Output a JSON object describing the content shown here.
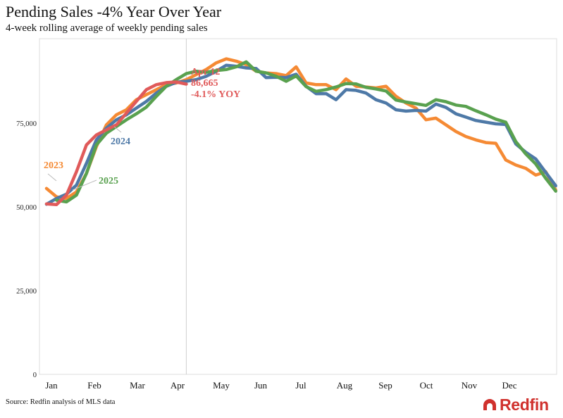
{
  "header": {
    "title": "Pending Sales -4% Year Over Year",
    "subtitle": "4-week rolling average of weekly pending sales"
  },
  "footer": {
    "source": "Source: Redfin analysis of MLS data",
    "logo_text": "Redfin"
  },
  "chart_data": {
    "type": "line",
    "title": "Pending Sales -4% Year Over Year",
    "subtitle": "4-week rolling average of weekly pending sales",
    "xlabel": "",
    "ylabel": "",
    "ylim": [
      0,
      100000
    ],
    "y_ticks": [
      0,
      25000,
      50000,
      75000
    ],
    "y_tick_labels": [
      "0",
      "25,000",
      "50,000",
      "75,000"
    ],
    "x_ticks": [
      "Jan",
      "Feb",
      "Mar",
      "Apr",
      "May",
      "Jun",
      "Jul",
      "Aug",
      "Sep",
      "Oct",
      "Nov",
      "Dec"
    ],
    "grid": false,
    "legend": "inline labels",
    "reference_line": "Apr 12",
    "annotation": {
      "date_label": "Apr 12",
      "value_label": "86,665",
      "yoy_label": "-4.1% YOY",
      "color": "#e05a5a"
    },
    "series": [
      {
        "name": "2023",
        "color": "#f58a34",
        "label_color": "#f58a34",
        "values": [
          55500,
          53000,
          52500,
          54500,
          60000,
          68000,
          74500,
          77500,
          79000,
          82000,
          83500,
          85000,
          86500,
          87000,
          88000,
          89500,
          91000,
          93000,
          94200,
          93500,
          92500,
          90500,
          90000,
          89800,
          89200,
          91800,
          87000,
          86500,
          86500,
          85000,
          88200,
          86000,
          85800,
          85500,
          86000,
          83000,
          81000,
          79500,
          76000,
          76500,
          74500,
          72500,
          71000,
          70000,
          69200,
          69000,
          64000,
          62500,
          61500,
          59500,
          60500,
          55000
        ]
      },
      {
        "name": "2024",
        "color": "#4e79a7",
        "label_color": "#4e79a7",
        "values": [
          50800,
          52500,
          53800,
          56500,
          63000,
          70000,
          73500,
          76000,
          77500,
          79500,
          81500,
          84000,
          86000,
          87200,
          87500,
          88000,
          89000,
          90500,
          92300,
          92000,
          91500,
          91300,
          88600,
          88700,
          88600,
          89600,
          86000,
          83800,
          83800,
          82000,
          85000,
          84800,
          84000,
          82000,
          81000,
          79000,
          78600,
          78800,
          78600,
          80700,
          79700,
          77800,
          76800,
          75800,
          75300,
          74800,
          74600,
          68800,
          66300,
          64300,
          60300,
          56300
        ]
      },
      {
        "name": "2025",
        "color": "#59a14f",
        "label_color": "#59a14f",
        "values": [
          null,
          52000,
          51500,
          53500,
          60000,
          68500,
          72000,
          74000,
          76000,
          77800,
          79800,
          83000,
          86000,
          88000,
          89800,
          90500,
          90200,
          90700,
          91000,
          91800,
          93300,
          90500,
          90000,
          89000,
          87500,
          89100,
          85900,
          84500,
          85000,
          85800,
          86800,
          86700,
          85700,
          85200,
          84600,
          81900,
          81300,
          80800,
          80300,
          82000,
          81400,
          80400,
          80000,
          78700,
          77500,
          76200,
          75300,
          69500,
          65800,
          62800,
          58500,
          54700
        ]
      },
      {
        "name": "",
        "color": "#e05a5a",
        "values": [
          50900,
          50700,
          53500,
          60500,
          68500,
          71500,
          73000,
          74500,
          78000,
          81500,
          85000,
          86500,
          87100,
          87300,
          86665
        ]
      }
    ]
  }
}
